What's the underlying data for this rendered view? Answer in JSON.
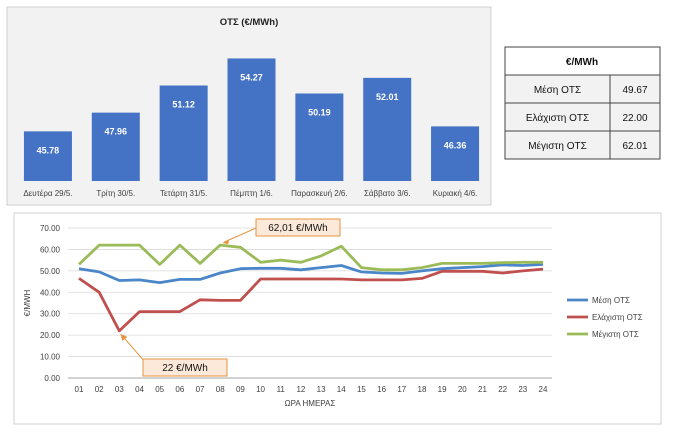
{
  "chart_data": [
    {
      "type": "bar",
      "title": "ΟΤΣ (€/MWh)",
      "categories": [
        "Δευτέρα 29/5.",
        "Τρίτη 30/5.",
        "Τετάρτη 31/5.",
        "Πέμπτη 1/6.",
        "Παρασκευή 2/6.",
        "Σάββατο 3/6.",
        "Κυριακή 4/6."
      ],
      "values": [
        45.78,
        47.96,
        51.12,
        54.27,
        50.19,
        52.01,
        46.36
      ],
      "value_labels": [
        "45.78",
        "47.96",
        "51.12",
        "54.27",
        "50.19",
        "52.01",
        "46.36"
      ],
      "colors": {
        "bar": "#4472c4"
      }
    },
    {
      "type": "table",
      "header": "€/MWh",
      "rows": [
        {
          "label": "Μέση ΟΤΣ",
          "value": "49.67"
        },
        {
          "label": "Ελάχιστη ΟΤΣ",
          "value": "22.00"
        },
        {
          "label": "Μέγιστη ΟΤΣ",
          "value": "62.01"
        }
      ],
      "colors": {
        "header_bg": "#ffffff",
        "cell_bg": "#f2f2f2"
      }
    },
    {
      "type": "line",
      "xlabel": "ΩΡΑ ΗΜΕΡΑΣ",
      "ylabel": "€/MWH",
      "ylim": [
        0,
        70
      ],
      "yticks": [
        "0.00",
        "10.00",
        "20.00",
        "30.00",
        "40.00",
        "50.00",
        "60.00",
        "70.00"
      ],
      "x": [
        "01",
        "02",
        "03",
        "04",
        "05",
        "06",
        "07",
        "08",
        "09",
        "10",
        "11",
        "12",
        "13",
        "14",
        "15",
        "16",
        "17",
        "18",
        "19",
        "20",
        "21",
        "22",
        "23",
        "24"
      ],
      "series": [
        {
          "name": "Μέση ΟΤΣ",
          "color": "#4a86c8",
          "values": [
            51.0,
            49.5,
            45.5,
            45.8,
            44.5,
            46.0,
            46.0,
            49.0,
            51.0,
            51.2,
            51.2,
            50.5,
            51.5,
            52.5,
            49.5,
            49.0,
            48.8,
            50.0,
            51.0,
            51.5,
            52.0,
            52.8,
            52.5,
            53.0
          ]
        },
        {
          "name": "Ελάχιστη ΟΤΣ",
          "color": "#c0504d",
          "values": [
            46.5,
            40.0,
            22.0,
            31.0,
            31.0,
            31.0,
            36.5,
            36.2,
            36.2,
            46.2,
            46.2,
            46.2,
            46.2,
            46.2,
            45.8,
            45.8,
            45.8,
            46.5,
            49.8,
            49.8,
            49.8,
            49.0,
            50.0,
            50.8
          ]
        },
        {
          "name": "Μέγιστη ΟΤΣ",
          "color": "#9bbb59",
          "values": [
            53.0,
            62.0,
            62.0,
            62.0,
            53.0,
            62.0,
            53.5,
            62.01,
            61.0,
            54.0,
            55.0,
            54.0,
            57.0,
            61.5,
            51.5,
            50.5,
            50.5,
            51.5,
            53.5,
            53.5,
            53.5,
            53.8,
            54.0,
            54.0
          ]
        }
      ],
      "annotations": [
        {
          "text": "62,01 €/MWh",
          "x": "08",
          "y": 62.01
        },
        {
          "text": "22 €/MWh",
          "x": "03",
          "y": 22.0
        }
      ],
      "grid": true,
      "legend": "right"
    }
  ]
}
